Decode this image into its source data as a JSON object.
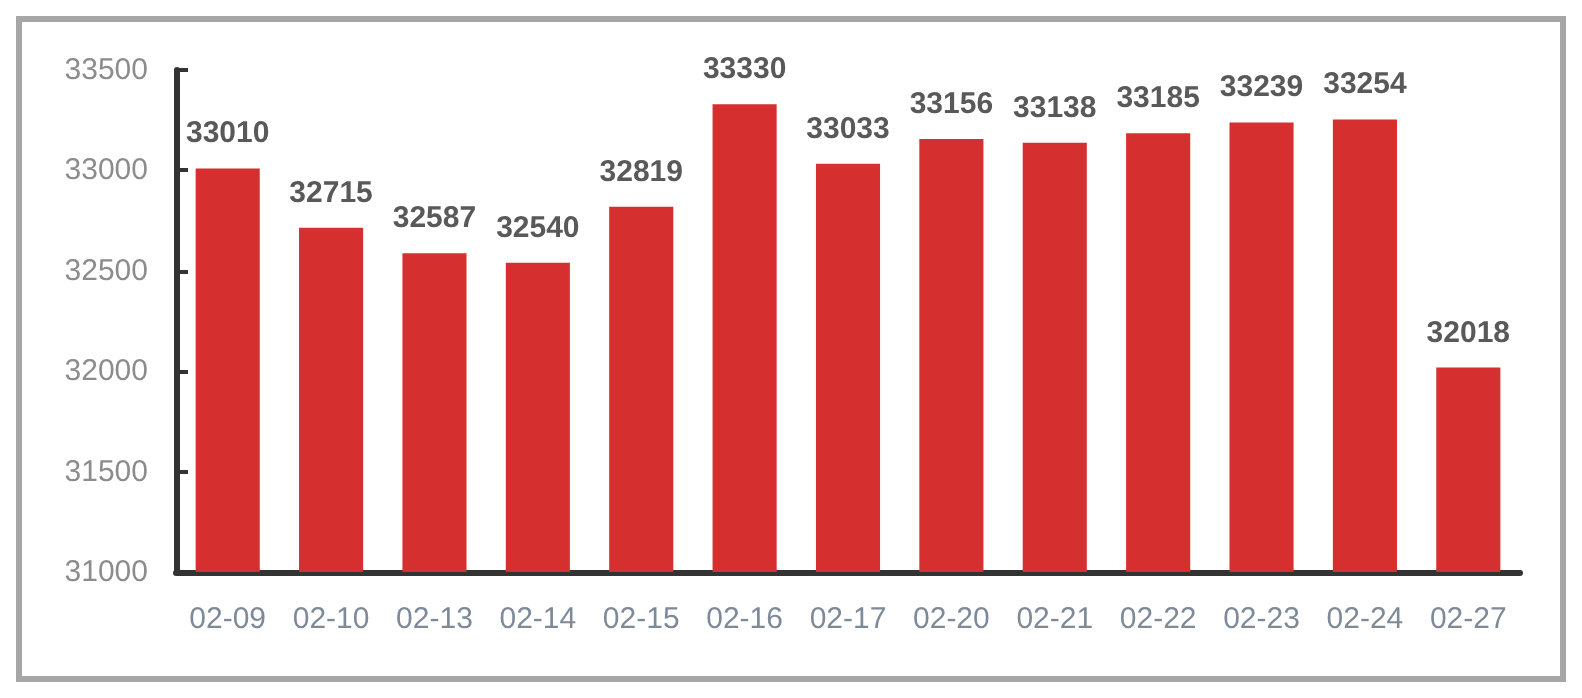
{
  "chart_data": {
    "type": "bar",
    "categories": [
      "02-09",
      "02-10",
      "02-13",
      "02-14",
      "02-15",
      "02-16",
      "02-17",
      "02-20",
      "02-21",
      "02-22",
      "02-23",
      "02-24",
      "02-27"
    ],
    "values": [
      33010,
      32715,
      32587,
      32540,
      32819,
      33330,
      33033,
      33156,
      33138,
      33185,
      33239,
      33254,
      32018
    ],
    "color": "#d62f2f",
    "ylim": [
      31000,
      33500
    ],
    "yticks": [
      31000,
      31500,
      32000,
      32500,
      33000,
      33500
    ],
    "grid": false,
    "data_labels": true
  }
}
